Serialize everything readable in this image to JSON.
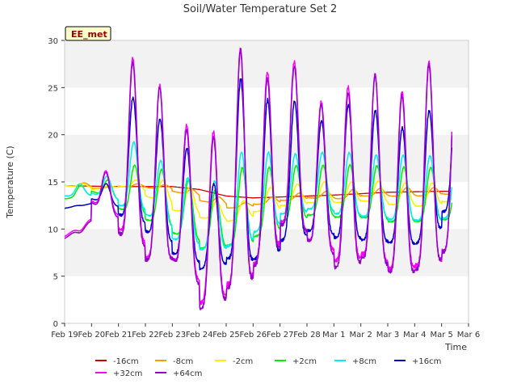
{
  "chart_data": {
    "type": "line",
    "title": "Soil/Water Temperature Set 2",
    "xlabel": "Time",
    "ylabel": "Temperature (C)",
    "site_label": "EE_met",
    "x_range_days": [
      "Feb 19",
      "Mar 6"
    ],
    "xticks": [
      "Feb 19",
      "Feb 20",
      "Feb 21",
      "Feb 22",
      "Feb 23",
      "Feb 24",
      "Feb 25",
      "Feb 26",
      "Feb 27",
      "Feb 28",
      "Mar 1",
      "Mar 2",
      "Mar 3",
      "Mar 4",
      "Mar 5",
      "Mar 6"
    ],
    "ylim": [
      0,
      30
    ],
    "yticks": [
      0,
      5,
      10,
      15,
      20,
      25,
      30
    ],
    "grid": "horizontal bands",
    "legend_position": "bottom",
    "daily_minmax_note": "per-day [min, max] values, Feb 19 .. Mar 5",
    "series": [
      {
        "name": "-16cm",
        "color": "#cc0000",
        "kind": "trend",
        "days": [
          "Feb 19",
          "Feb 21",
          "Feb 23",
          "Feb 24",
          "Feb 25",
          "Feb 26",
          "Feb 27",
          "Mar 1",
          "Mar 3",
          "Mar 5"
        ],
        "values": [
          14.6,
          14.5,
          14.5,
          14.2,
          13.5,
          13.3,
          13.4,
          13.6,
          13.9,
          14.0
        ]
      },
      {
        "name": "-8cm",
        "color": "#ff9900",
        "kind": "diurnal",
        "days": [
          "Feb 19",
          "Feb 20",
          "Feb 21",
          "Feb 22",
          "Feb 23",
          "Feb 24",
          "Feb 25",
          "Feb 26",
          "Feb 27",
          "Feb 28",
          "Mar 1",
          "Mar 2",
          "Mar 3",
          "Mar 4",
          "Mar 5"
        ],
        "min": [
          14.6,
          14.3,
          14.5,
          14.4,
          14.0,
          13.0,
          12.2,
          12.6,
          13.0,
          13.3,
          13.2,
          13.5,
          13.5,
          13.5,
          13.7
        ],
        "max": [
          14.9,
          14.5,
          14.8,
          14.7,
          14.2,
          13.4,
          12.8,
          13.4,
          13.8,
          14.0,
          14.2,
          14.3,
          14.4,
          14.4,
          14.4
        ]
      },
      {
        "name": "-2cm",
        "color": "#ffee00",
        "kind": "diurnal",
        "days": [
          "Feb 19",
          "Feb 20",
          "Feb 21",
          "Feb 22",
          "Feb 23",
          "Feb 24",
          "Feb 25",
          "Feb 26",
          "Feb 27",
          "Feb 28",
          "Mar 1",
          "Mar 2",
          "Mar 3",
          "Mar 4",
          "Mar 5"
        ],
        "min": [
          14.6,
          14.2,
          14.6,
          13.5,
          12.0,
          11.2,
          10.8,
          11.8,
          12.5,
          12.8,
          12.8,
          13.0,
          12.6,
          12.4,
          12.9
        ],
        "max": [
          14.8,
          14.6,
          15.2,
          15.2,
          14.5,
          13.0,
          13.0,
          14.4,
          14.8,
          15.0,
          15.0,
          15.1,
          14.9,
          14.9,
          15.0
        ]
      },
      {
        "name": "+2cm",
        "color": "#00ee00",
        "kind": "diurnal",
        "days": [
          "Feb 19",
          "Feb 20",
          "Feb 21",
          "Feb 22",
          "Feb 23",
          "Feb 24",
          "Feb 25",
          "Feb 26",
          "Feb 27",
          "Feb 28",
          "Mar 1",
          "Mar 2",
          "Mar 3",
          "Mar 4",
          "Mar 5"
        ],
        "min": [
          13.2,
          14.0,
          12.2,
          11.0,
          9.6,
          8.0,
          8.2,
          9.2,
          10.8,
          11.5,
          11.3,
          11.2,
          10.8,
          10.8,
          11.0
        ],
        "max": [
          14.6,
          15.2,
          16.8,
          16.3,
          15.2,
          14.2,
          16.5,
          16.6,
          16.7,
          16.8,
          16.8,
          16.7,
          16.6,
          16.5,
          16.6
        ]
      },
      {
        "name": "+8cm",
        "color": "#00eeee",
        "kind": "diurnal",
        "days": [
          "Feb 19",
          "Feb 20",
          "Feb 21",
          "Feb 22",
          "Feb 23",
          "Feb 24",
          "Feb 25",
          "Feb 26",
          "Feb 27",
          "Feb 28",
          "Mar 1",
          "Mar 2",
          "Mar 3",
          "Mar 4",
          "Mar 5"
        ],
        "min": [
          13.5,
          13.8,
          12.5,
          11.6,
          9.0,
          7.8,
          8.2,
          9.6,
          11.6,
          12.2,
          11.6,
          11.4,
          11.0,
          10.9,
          11.2
        ],
        "max": [
          14.8,
          15.6,
          19.2,
          17.3,
          15.4,
          15.1,
          18.2,
          18.1,
          18.0,
          18.1,
          18.1,
          17.9,
          17.8,
          17.8,
          18.9
        ]
      },
      {
        "name": "+16cm",
        "color": "#0000cc",
        "kind": "diurnal",
        "days": [
          "Feb 19",
          "Feb 20",
          "Feb 21",
          "Feb 22",
          "Feb 23",
          "Feb 24",
          "Feb 25",
          "Feb 26",
          "Feb 27",
          "Feb 28",
          "Mar 1",
          "Mar 2",
          "Mar 3",
          "Mar 4",
          "Mar 5"
        ],
        "min": [
          12.2,
          13.2,
          11.6,
          9.8,
          7.4,
          5.8,
          6.8,
          6.8,
          8.8,
          9.8,
          9.2,
          8.8,
          8.6,
          8.4,
          11.8
        ],
        "max": [
          12.5,
          14.8,
          24.0,
          21.6,
          18.6,
          14.8,
          25.8,
          23.8,
          23.5,
          21.5,
          23.2,
          22.5,
          20.8,
          22.5,
          24.0
        ]
      },
      {
        "name": "+32cm",
        "color": "#ff00ff",
        "kind": "diurnal",
        "days": [
          "Feb 19",
          "Feb 20",
          "Feb 21",
          "Feb 22",
          "Feb 23",
          "Feb 24",
          "Feb 25",
          "Feb 26",
          "Feb 27",
          "Feb 28",
          "Mar 1",
          "Mar 2",
          "Mar 3",
          "Mar 4",
          "Mar 5"
        ],
        "min": [
          9.2,
          13.0,
          10.0,
          7.0,
          7.0,
          2.0,
          4.2,
          6.2,
          10.8,
          9.0,
          6.5,
          7.5,
          5.8,
          6.0,
          7.8
        ],
        "max": [
          9.8,
          16.2,
          28.0,
          25.3,
          21.0,
          20.3,
          29.3,
          26.5,
          27.8,
          23.5,
          25.0,
          26.5,
          24.5,
          27.8,
          28.4
        ]
      },
      {
        "name": "+64cm",
        "color": "#9900cc",
        "kind": "diurnal",
        "days": [
          "Feb 19",
          "Feb 20",
          "Feb 21",
          "Feb 22",
          "Feb 23",
          "Feb 24",
          "Feb 25",
          "Feb 26",
          "Feb 27",
          "Feb 28",
          "Mar 1",
          "Mar 2",
          "Mar 3",
          "Mar 4",
          "Mar 5"
        ],
        "min": [
          9.0,
          12.8,
          9.6,
          6.8,
          6.8,
          1.6,
          3.6,
          6.0,
          10.6,
          8.8,
          6.0,
          7.0,
          5.4,
          5.8,
          7.5
        ],
        "max": [
          9.6,
          16.0,
          27.8,
          25.0,
          20.5,
          19.8,
          28.8,
          26.0,
          27.2,
          23.2,
          24.5,
          26.2,
          24.2,
          27.4,
          28.0
        ]
      }
    ]
  }
}
